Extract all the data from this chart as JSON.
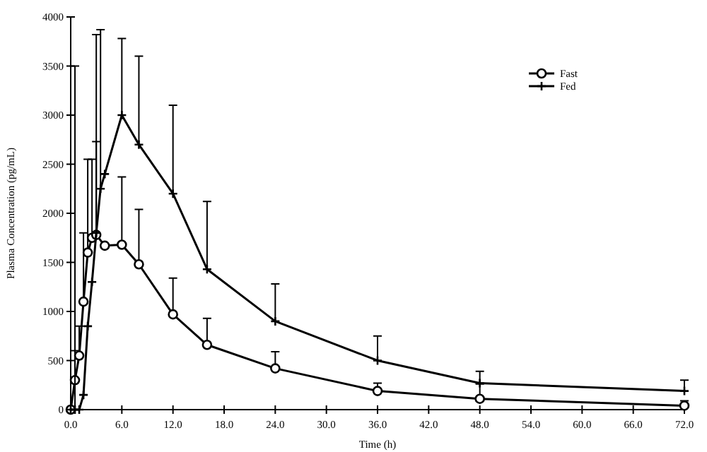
{
  "chart_data": {
    "type": "line",
    "xlabel": "Time (h)",
    "ylabel": "Plasma Concentration (pg/mL)",
    "xlim": [
      0,
      72
    ],
    "ylim": [
      0,
      4000
    ],
    "xticks": [
      {
        "value": 0,
        "label": "0.0"
      },
      {
        "value": 6,
        "label": "6.0"
      },
      {
        "value": 12,
        "label": "12.0"
      },
      {
        "value": 18,
        "label": "18.0"
      },
      {
        "value": 24,
        "label": "24.0"
      },
      {
        "value": 30,
        "label": "30.0"
      },
      {
        "value": 36,
        "label": "36.0"
      },
      {
        "value": 42,
        "label": "42.0"
      },
      {
        "value": 48,
        "label": "48.0"
      },
      {
        "value": 54,
        "label": "54.0"
      },
      {
        "value": 60,
        "label": "60.0"
      },
      {
        "value": 66,
        "label": "66.0"
      },
      {
        "value": 72,
        "label": "72.0"
      }
    ],
    "yticks": [
      0,
      500,
      1000,
      1500,
      2000,
      2500,
      3000,
      3500,
      4000
    ],
    "legend": "top right",
    "grid": false,
    "series": [
      {
        "name": "Fast",
        "color": "#000000",
        "marker": "circle",
        "x": [
          0,
          0.5,
          1,
          1.5,
          2,
          2.5,
          3,
          4,
          6,
          8,
          12,
          16,
          24,
          36,
          48,
          72
        ],
        "values": [
          0,
          300,
          550,
          1100,
          1600,
          1750,
          1780,
          1670,
          1680,
          1480,
          970,
          660,
          420,
          190,
          110,
          40
        ],
        "errors": [
          null,
          [
            300,
            600
          ],
          [
            550,
            850
          ],
          [
            1100,
            1800
          ],
          [
            1600,
            2550
          ],
          [
            1750,
            2550
          ],
          [
            1780,
            2730
          ],
          null,
          [
            1680,
            2370
          ],
          [
            1480,
            2040
          ],
          [
            970,
            1340
          ],
          [
            660,
            930
          ],
          [
            420,
            590
          ],
          [
            190,
            270
          ],
          [
            110,
            260
          ],
          [
            40,
            90
          ]
        ]
      },
      {
        "name": "Fed",
        "color": "#000000",
        "marker": "cross",
        "x": [
          0,
          0.5,
          1,
          1.5,
          2,
          2.5,
          3,
          3.5,
          4,
          6,
          8,
          12,
          16,
          24,
          36,
          48,
          72
        ],
        "values": [
          0,
          0,
          0,
          150,
          850,
          1300,
          1800,
          2250,
          2400,
          3000,
          2700,
          2200,
          1430,
          900,
          500,
          270,
          190
        ],
        "errors": [
          null,
          [
            0,
            3500
          ],
          null,
          null,
          null,
          null,
          [
            1800,
            3820
          ],
          [
            2250,
            3870
          ],
          null,
          [
            3000,
            3780
          ],
          [
            2700,
            3600
          ],
          [
            2200,
            3100
          ],
          [
            1430,
            2120
          ],
          [
            900,
            1280
          ],
          [
            500,
            750
          ],
          [
            270,
            390
          ],
          [
            190,
            300
          ]
        ]
      }
    ]
  }
}
